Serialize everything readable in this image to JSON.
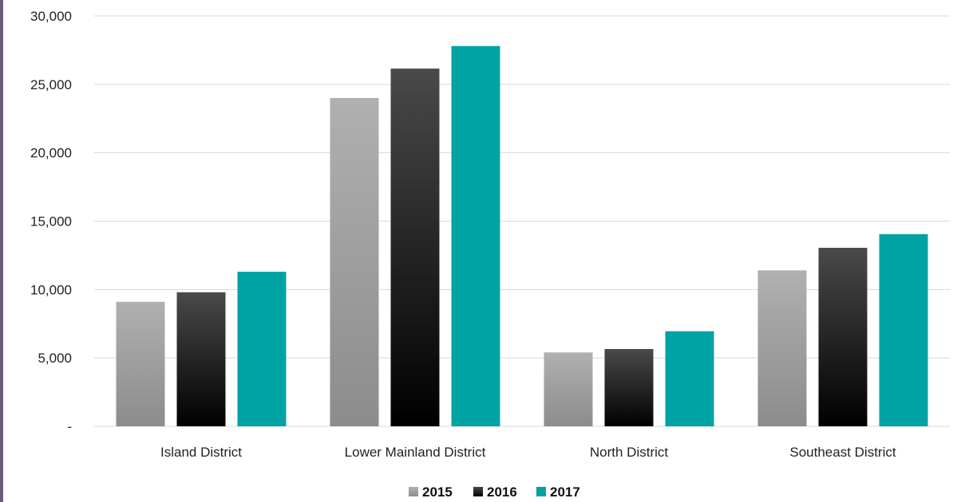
{
  "chart_data": {
    "type": "bar",
    "title": "",
    "xlabel": "",
    "ylabel": "",
    "categories": [
      "Island District",
      "Lower Mainland District",
      "North District",
      "Southeast District"
    ],
    "series": [
      {
        "name": "2015",
        "values": [
          9100,
          24000,
          5400,
          11400
        ]
      },
      {
        "name": "2016",
        "values": [
          9800,
          26150,
          5650,
          13050
        ]
      },
      {
        "name": "2017",
        "values": [
          11300,
          27800,
          6950,
          14050
        ]
      }
    ],
    "ylim": [
      0,
      30000
    ],
    "y_ticks": [
      0,
      5000,
      10000,
      15000,
      20000,
      25000,
      30000
    ],
    "y_tick_labels": [
      "-",
      "5,000",
      "10,000",
      "15,000",
      "20,000",
      "25,000",
      "30,000"
    ],
    "grid": true,
    "legend": "bottom-center",
    "colors": {
      "2015": {
        "top": "#b0b0b0",
        "bottom": "#8c8c8c"
      },
      "2016": {
        "top": "#4a4a4a",
        "bottom": "#000000"
      },
      "2017": {
        "top": "#00a3a3",
        "bottom": "#00a3a3"
      }
    },
    "gridline_color": "#d9d9d9"
  }
}
